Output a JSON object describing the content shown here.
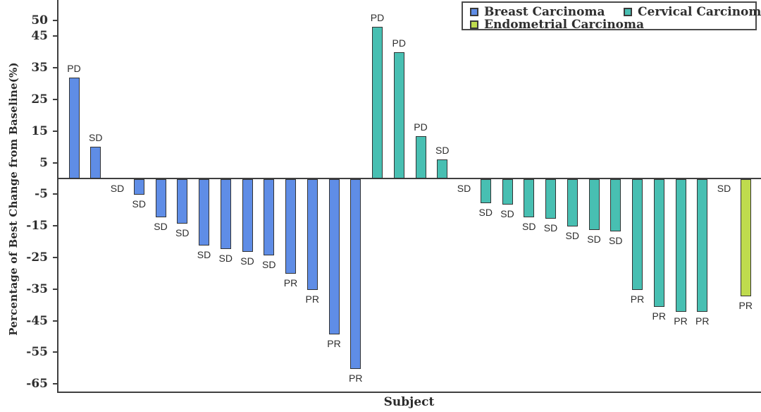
{
  "chart_data": {
    "type": "bar",
    "subtype": "waterfall",
    "title": "",
    "xlabel": "Subject",
    "ylabel": "Percentage of Best Change from Baseline(%)",
    "ylim": [
      -68,
      57
    ],
    "yticks": [
      50,
      45,
      35,
      25,
      15,
      5,
      -5,
      -15,
      -25,
      -35,
      -45,
      -55,
      -65
    ],
    "grid": false,
    "legend_position": "top-right",
    "axis_color": "#3f3f3f",
    "bar_outline_color": "#333333",
    "series": [
      {
        "name": "Breast Carcinoma",
        "color": "#5f8de6"
      },
      {
        "name": "Cervical Carcinoma",
        "color": "#48bfb2"
      },
      {
        "name": "Endometrial Carcinoma",
        "color": "#bfdb4e"
      }
    ],
    "subjects": [
      {
        "series": "Breast Carcinoma",
        "response": "PD",
        "value": 32
      },
      {
        "series": "Breast Carcinoma",
        "response": "SD",
        "value": 10
      },
      {
        "series": "Breast Carcinoma",
        "response": "SD",
        "value": 0
      },
      {
        "series": "Breast Carcinoma",
        "response": "SD",
        "value": -5
      },
      {
        "series": "Breast Carcinoma",
        "response": "SD",
        "value": -12
      },
      {
        "series": "Breast Carcinoma",
        "response": "SD",
        "value": -14
      },
      {
        "series": "Breast Carcinoma",
        "response": "SD",
        "value": -21
      },
      {
        "series": "Breast Carcinoma",
        "response": "SD",
        "value": -22
      },
      {
        "series": "Breast Carcinoma",
        "response": "SD",
        "value": -23
      },
      {
        "series": "Breast Carcinoma",
        "response": "SD",
        "value": -24
      },
      {
        "series": "Breast Carcinoma",
        "response": "PR",
        "value": -30
      },
      {
        "series": "Breast Carcinoma",
        "response": "PR",
        "value": -35
      },
      {
        "series": "Breast Carcinoma",
        "response": "PR",
        "value": -49
      },
      {
        "series": "Breast Carcinoma",
        "response": "PR",
        "value": -60
      },
      {
        "series": "Cervical Carcinoma",
        "response": "PD",
        "value": 48
      },
      {
        "series": "Cervical Carcinoma",
        "response": "PD",
        "value": 40
      },
      {
        "series": "Cervical Carcinoma",
        "response": "PD",
        "value": 13.5
      },
      {
        "series": "Cervical Carcinoma",
        "response": "SD",
        "value": 6
      },
      {
        "series": "Cervical Carcinoma",
        "response": "SD",
        "value": 0
      },
      {
        "series": "Cervical Carcinoma",
        "response": "SD",
        "value": -7.5
      },
      {
        "series": "Cervical Carcinoma",
        "response": "SD",
        "value": -8
      },
      {
        "series": "Cervical Carcinoma",
        "response": "SD",
        "value": -12
      },
      {
        "series": "Cervical Carcinoma",
        "response": "SD",
        "value": -12.5
      },
      {
        "series": "Cervical Carcinoma",
        "response": "SD",
        "value": -15
      },
      {
        "series": "Cervical Carcinoma",
        "response": "SD",
        "value": -16
      },
      {
        "series": "Cervical Carcinoma",
        "response": "SD",
        "value": -16.5
      },
      {
        "series": "Cervical Carcinoma",
        "response": "PR",
        "value": -35
      },
      {
        "series": "Cervical Carcinoma",
        "response": "PR",
        "value": -40.5
      },
      {
        "series": "Cervical Carcinoma",
        "response": "PR",
        "value": -42
      },
      {
        "series": "Cervical Carcinoma",
        "response": "PR",
        "value": -42
      },
      {
        "series": "Endometrial Carcinoma",
        "response": "SD",
        "value": 0
      },
      {
        "series": "Endometrial Carcinoma",
        "response": "PR",
        "value": -37
      }
    ]
  }
}
